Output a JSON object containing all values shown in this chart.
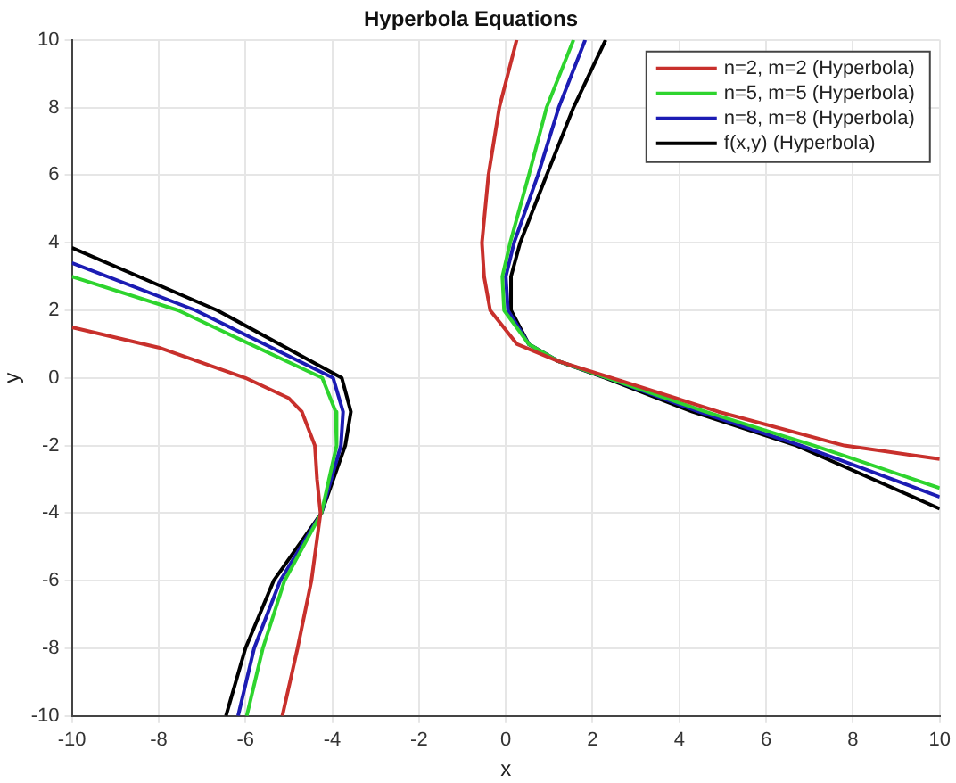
{
  "chart_data": {
    "type": "line",
    "title": "Hyperbola Equations",
    "xlabel": "x",
    "ylabel": "y",
    "xlim": [
      -10,
      10
    ],
    "ylim": [
      -10,
      10
    ],
    "xticks": [
      -10,
      -8,
      -6,
      -4,
      -2,
      0,
      2,
      4,
      6,
      8,
      10
    ],
    "yticks": [
      -10,
      -8,
      -6,
      -4,
      -2,
      0,
      2,
      4,
      6,
      8,
      10
    ],
    "grid": true,
    "legend": "top right",
    "marker": "none",
    "line_style": "solid",
    "series": [
      {
        "name": "n=2, m=2 (Hyperbola)",
        "color": "#c8302c",
        "x": [
          -10,
          -8,
          -6,
          -5,
          -4.7,
          -4.4,
          -4.35,
          -4.27,
          -4.48,
          -4.8,
          -5.15,
          null,
          0.25,
          -0.15,
          -0.4,
          -0.55,
          -0.5,
          -0.36,
          0.26,
          1.2,
          2.45,
          4.9,
          7.8,
          10
        ],
        "values": [
          1.5,
          0.9,
          0,
          -0.6,
          -1,
          -2,
          -3,
          -4,
          -6,
          -8,
          -10,
          null,
          10,
          8,
          6,
          4,
          3,
          2,
          1,
          0.5,
          0,
          -1,
          -2,
          -2.4
        ]
      },
      {
        "name": "n=5, m=5 (Hyperbola)",
        "color": "#2ed42e",
        "x": [
          -10,
          -7.55,
          -4.23,
          -3.92,
          -3.9,
          -4.25,
          -5.1,
          -5.6,
          -5.97,
          null,
          1.56,
          0.94,
          0.53,
          0.1,
          -0.08,
          -0.04,
          0.53,
          1.2,
          2.35,
          4.6,
          7.1,
          10
        ],
        "values": [
          3,
          2,
          0,
          -1,
          -2,
          -4,
          -6,
          -8,
          -10,
          null,
          10,
          8,
          6,
          4,
          3,
          2,
          1,
          0.5,
          0,
          -1,
          -2,
          -3.26
        ]
      },
      {
        "name": "n=8, m=8 (Hyperbola)",
        "color": "#1c1cb4",
        "x": [
          -10,
          -7.15,
          -3.98,
          -3.75,
          -3.8,
          -4.25,
          -5.2,
          -5.8,
          -6.17,
          null,
          1.83,
          1.22,
          0.74,
          0.19,
          0,
          0.05,
          0.53,
          1.2,
          2.35,
          4.45,
          6.8,
          10
        ],
        "values": [
          3.4,
          2,
          0,
          -1,
          -2,
          -4,
          -6,
          -8,
          -10,
          null,
          10,
          8,
          6,
          4,
          3,
          2,
          1,
          0.5,
          0,
          -1,
          -2,
          -3.52
        ]
      },
      {
        "name": "f(x,y) (Hyperbola)",
        "color": "#000000",
        "x": [
          -10,
          -6.65,
          -3.78,
          -3.57,
          -3.7,
          -4.25,
          -5.35,
          -6,
          -6.45,
          null,
          2.3,
          1.56,
          0.94,
          0.33,
          0.12,
          0.12,
          0.53,
          1.2,
          2.3,
          4.3,
          6.7,
          10
        ],
        "values": [
          3.85,
          2,
          0,
          -1,
          -2,
          -4,
          -6,
          -8,
          -10,
          null,
          10,
          8,
          6,
          4,
          3,
          2,
          1,
          0.5,
          0,
          -1,
          -2,
          -3.87
        ]
      }
    ]
  }
}
